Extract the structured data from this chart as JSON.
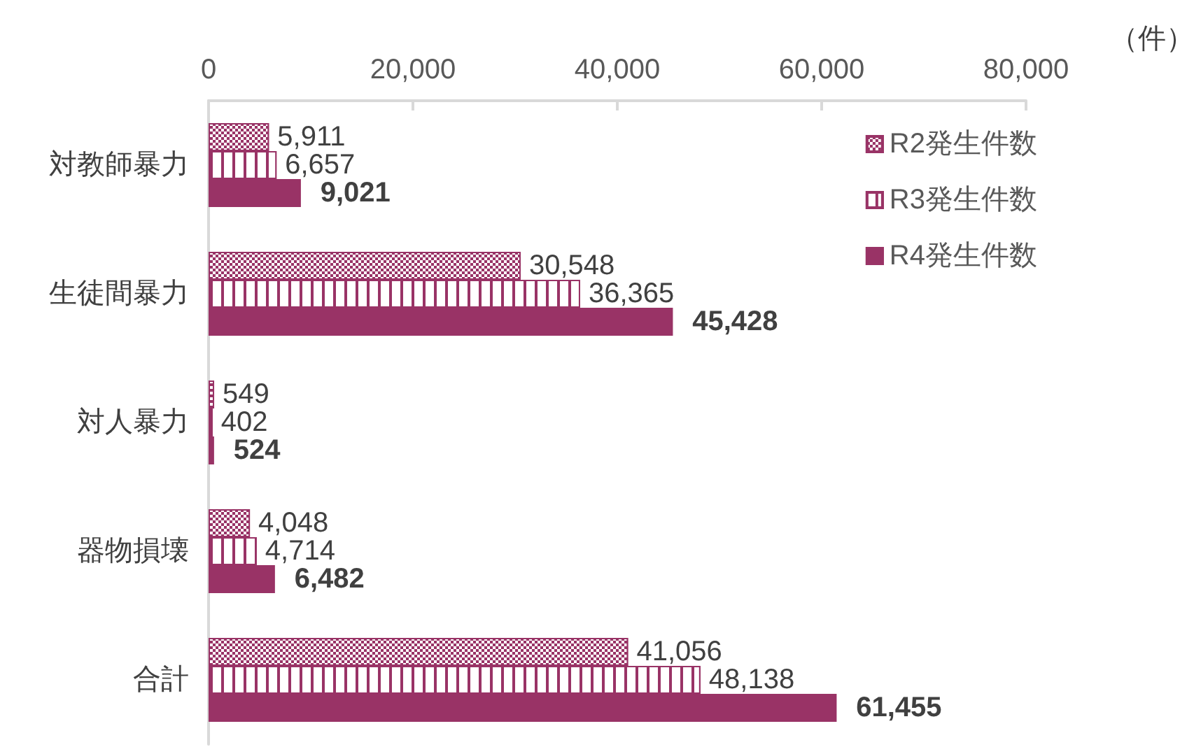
{
  "chart_data": {
    "type": "bar",
    "orientation": "horizontal",
    "xlabel": "（件）",
    "categories": [
      "対教師暴力",
      "生徒間暴力",
      "対人暴力",
      "器物損壊",
      "合計"
    ],
    "series": [
      {
        "name": "R2発生件数",
        "color": "#993366",
        "values": [
          5911,
          30548,
          549,
          4048,
          41056
        ],
        "value_labels": [
          "5,911",
          "30,548",
          "549",
          "4,048",
          "41,056"
        ]
      },
      {
        "name": "R3発生件数",
        "color": "#993366",
        "values": [
          6657,
          36365,
          402,
          4714,
          48138
        ],
        "value_labels": [
          "6,657",
          "36,365",
          "402",
          "4,714",
          "48,138"
        ]
      },
      {
        "name": "R4発生件数",
        "color": "#993366",
        "values": [
          9021,
          45428,
          524,
          6482,
          61455
        ],
        "value_labels": [
          "9,021",
          "45,428",
          "524",
          "6,482",
          "61,455"
        ]
      }
    ],
    "xlim": [
      0,
      80000
    ],
    "xticks": [
      0,
      {
        "value": 20000,
        "label": "20,000"
      },
      {
        "value": 40000,
        "label": "40,000"
      },
      {
        "value": 60000,
        "label": "60,000"
      },
      {
        "value": 80000,
        "label": "80,000"
      }
    ],
    "legend": "top right",
    "grid": false
  }
}
